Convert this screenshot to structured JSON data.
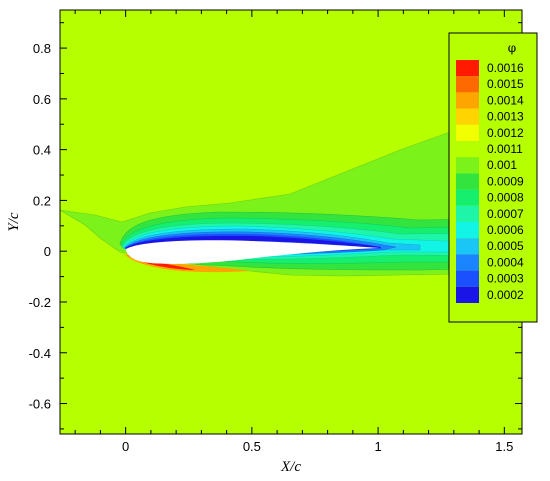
{
  "chart_data": {
    "type": "contour",
    "xlabel": "X/c",
    "ylabel": "Y/c",
    "xlim": [
      -0.26,
      1.57
    ],
    "ylim": [
      -0.72,
      0.95
    ],
    "x_ticks": [
      "0",
      "0.5",
      "1",
      "1.5"
    ],
    "x_tick_values": [
      0,
      0.5,
      1,
      1.5
    ],
    "y_ticks": [
      "0.8",
      "0.6",
      "0.4",
      "0.2",
      "0",
      "-0.2",
      "-0.4",
      "-0.6"
    ],
    "y_tick_values": [
      0.8,
      0.6,
      0.4,
      0.2,
      0,
      -0.2,
      -0.4,
      -0.6
    ],
    "grid": false,
    "legend": {
      "title": "φ",
      "placement": "top-right",
      "levels": [
        {
          "label": "0.0016",
          "value": 0.0016,
          "color": "#ff1a00"
        },
        {
          "label": "0.0015",
          "value": 0.0015,
          "color": "#ff6a00"
        },
        {
          "label": "0.0014",
          "value": 0.0014,
          "color": "#ffa500"
        },
        {
          "label": "0.0013",
          "value": 0.0013,
          "color": "#ffd400"
        },
        {
          "label": "0.0012",
          "value": 0.0012,
          "color": "#f2ff00"
        },
        {
          "label": "0.0011",
          "value": 0.0011,
          "color": "#b6ff00"
        },
        {
          "label": "0.001",
          "value": 0.001,
          "color": "#7bf21a"
        },
        {
          "label": "0.0009",
          "value": 0.0009,
          "color": "#33e43f"
        },
        {
          "label": "0.0008",
          "value": 0.0008,
          "color": "#16ee6e"
        },
        {
          "label": "0.0007",
          "value": 0.0007,
          "color": "#1ef5a8"
        },
        {
          "label": "0.0006",
          "value": 0.0006,
          "color": "#12f5e6"
        },
        {
          "label": "0.0005",
          "value": 0.0005,
          "color": "#19c6f5"
        },
        {
          "label": "0.0004",
          "value": 0.0004,
          "color": "#1a85ff"
        },
        {
          "label": "0.0003",
          "value": 0.0003,
          "color": "#1a50ff"
        },
        {
          "label": "0.0002",
          "value": 0.0002,
          "color": "#1a14e6"
        }
      ]
    },
    "background_level": "0.0011",
    "airfoil": {
      "leading_edge_x": 0,
      "trailing_edge_x": 1.0
    }
  }
}
